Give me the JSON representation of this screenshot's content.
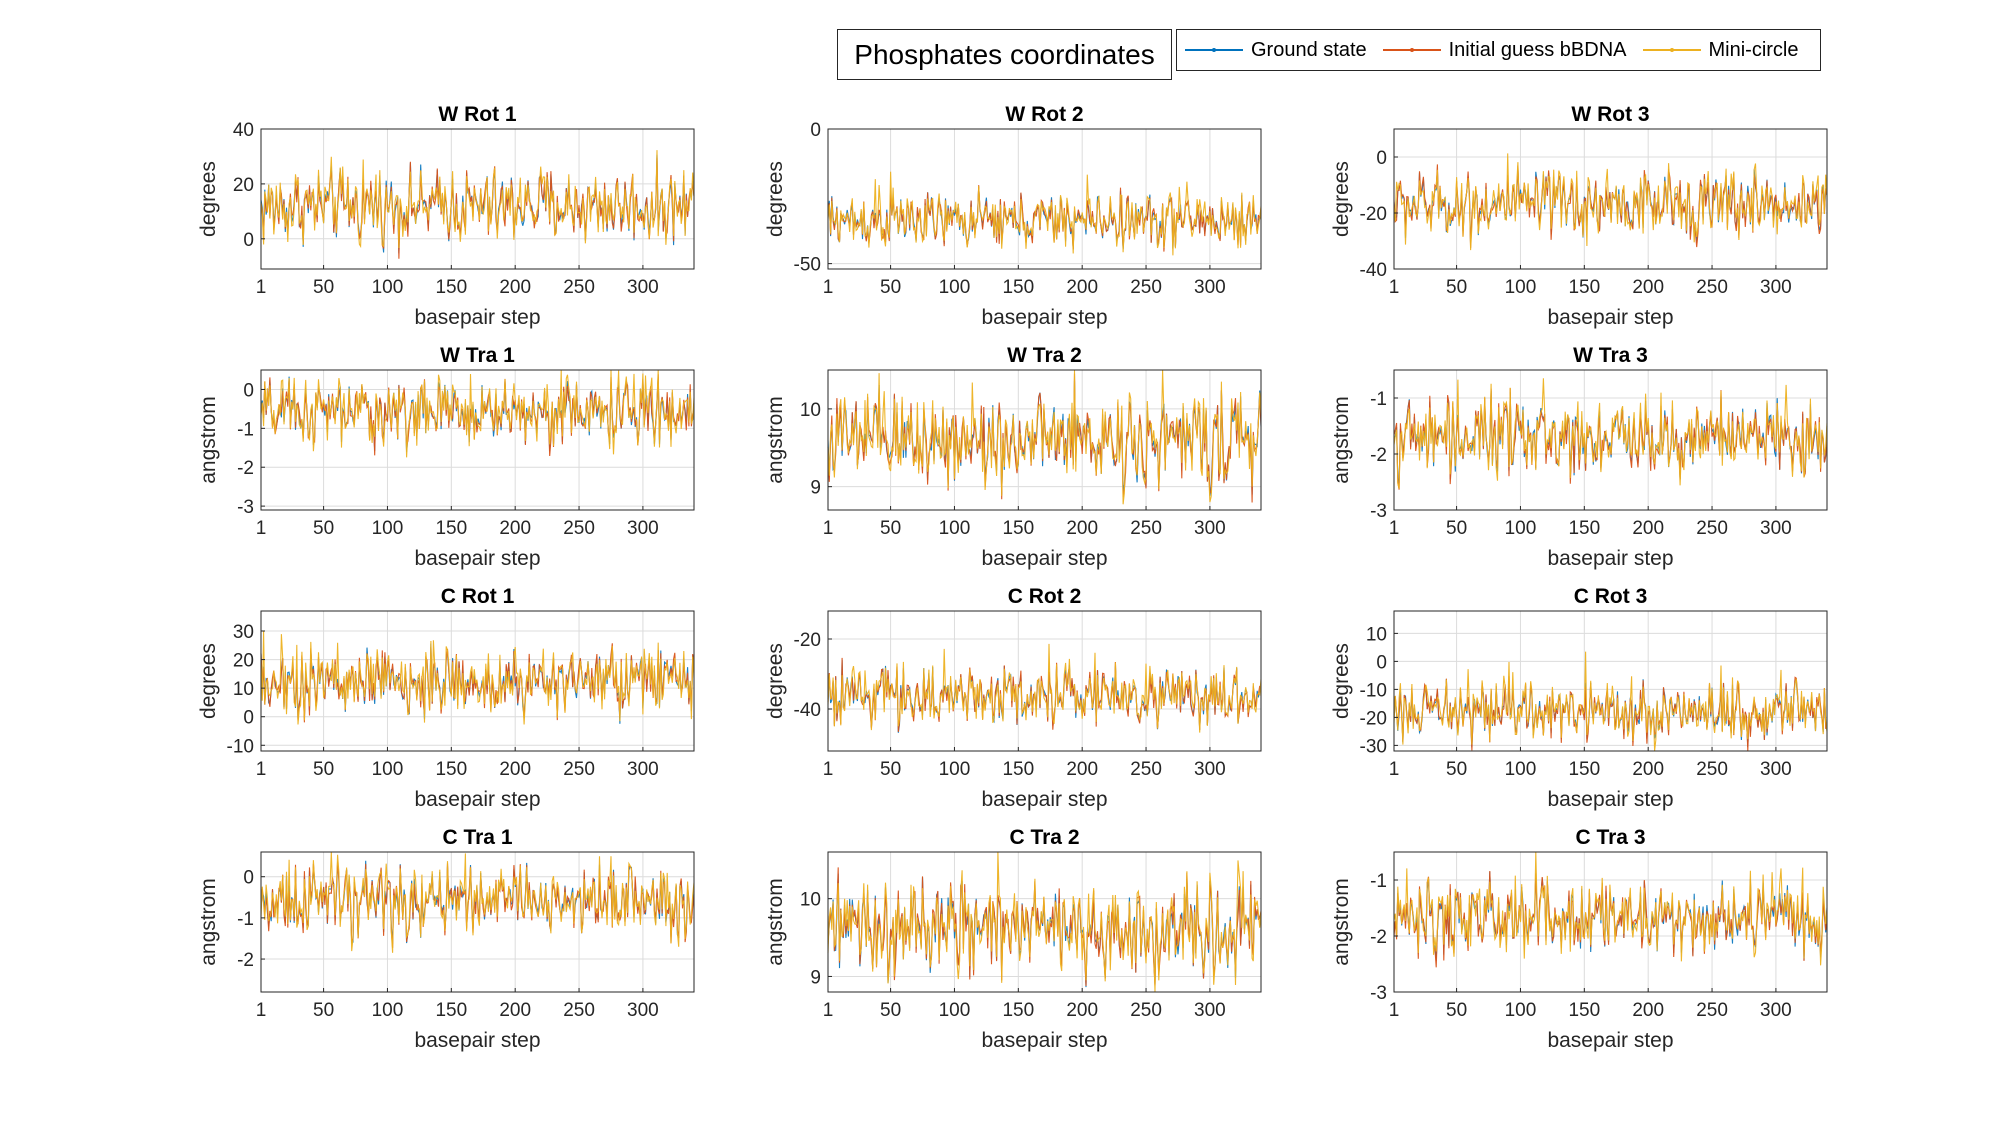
{
  "figure_title": "Phosphates coordinates",
  "legend": {
    "entries": [
      {
        "label": "Ground state",
        "color": "#0072BD"
      },
      {
        "label": "Initial guess bBDNA",
        "color": "#D95319"
      },
      {
        "label": "Mini-circle",
        "color": "#EDB120"
      }
    ]
  },
  "chart_data": [
    {
      "type": "line",
      "title": "W Rot 1",
      "xlabel": "basepair step",
      "ylabel": "degrees",
      "xlim": [
        1,
        340
      ],
      "ylim": [
        -11,
        40
      ],
      "xticks": [
        1,
        50,
        100,
        150,
        200,
        250,
        300
      ],
      "yticks": [
        0,
        20,
        40
      ],
      "mean": 12,
      "spread": 8,
      "grid": true
    },
    {
      "type": "line",
      "title": "W Rot 2",
      "xlabel": "basepair step",
      "ylabel": "degrees",
      "xlim": [
        1,
        340
      ],
      "ylim": [
        -52,
        0
      ],
      "xticks": [
        1,
        50,
        100,
        150,
        200,
        250,
        300
      ],
      "yticks": [
        -50,
        0
      ],
      "mean": -34,
      "spread": 6,
      "grid": true
    },
    {
      "type": "line",
      "title": "W Rot 3",
      "xlabel": "basepair step",
      "ylabel": "degrees",
      "xlim": [
        1,
        340
      ],
      "ylim": [
        -40,
        10
      ],
      "xticks": [
        1,
        50,
        100,
        150,
        200,
        250,
        300
      ],
      "yticks": [
        -40,
        -20,
        0
      ],
      "mean": -17,
      "spread": 7,
      "grid": true
    },
    {
      "type": "line",
      "title": "W Tra 1",
      "xlabel": "basepair step",
      "ylabel": "angstrom",
      "xlim": [
        1,
        340
      ],
      "ylim": [
        -3.1,
        0.5
      ],
      "xticks": [
        1,
        50,
        100,
        150,
        200,
        250,
        300
      ],
      "yticks": [
        -3,
        -2,
        -1,
        0
      ],
      "mean": -0.6,
      "spread": 0.5,
      "grid": true
    },
    {
      "type": "line",
      "title": "W Tra 2",
      "xlabel": "basepair step",
      "ylabel": "angstrom",
      "xlim": [
        1,
        340
      ],
      "ylim": [
        8.7,
        10.5
      ],
      "xticks": [
        1,
        50,
        100,
        150,
        200,
        250,
        300
      ],
      "yticks": [
        9,
        10
      ],
      "mean": 9.6,
      "spread": 0.35,
      "grid": true
    },
    {
      "type": "line",
      "title": "W Tra 3",
      "xlabel": "basepair step",
      "ylabel": "angstrom",
      "xlim": [
        1,
        340
      ],
      "ylim": [
        -3,
        -0.5
      ],
      "xticks": [
        1,
        50,
        100,
        150,
        200,
        250,
        300
      ],
      "yticks": [
        -3,
        -2,
        -1
      ],
      "mean": -1.7,
      "spread": 0.4,
      "grid": true
    },
    {
      "type": "line",
      "title": "C Rot 1",
      "xlabel": "basepair step",
      "ylabel": "degrees",
      "xlim": [
        1,
        340
      ],
      "ylim": [
        -12,
        37
      ],
      "xticks": [
        1,
        50,
        100,
        150,
        200,
        250,
        300
      ],
      "yticks": [
        -10,
        0,
        10,
        20,
        30
      ],
      "mean": 12,
      "spread": 7,
      "grid": true
    },
    {
      "type": "line",
      "title": "C Rot 2",
      "xlabel": "basepair step",
      "ylabel": "degrees",
      "xlim": [
        1,
        340
      ],
      "ylim": [
        -52,
        -12
      ],
      "xticks": [
        1,
        50,
        100,
        150,
        200,
        250,
        300
      ],
      "yticks": [
        -40,
        -20
      ],
      "mean": -36,
      "spread": 5,
      "grid": true
    },
    {
      "type": "line",
      "title": "C Rot 3",
      "xlabel": "basepair step",
      "ylabel": "degrees",
      "xlim": [
        1,
        340
      ],
      "ylim": [
        -32,
        18
      ],
      "xticks": [
        1,
        50,
        100,
        150,
        200,
        250,
        300
      ],
      "yticks": [
        -30,
        -20,
        -10,
        0,
        10
      ],
      "mean": -18,
      "spread": 6,
      "grid": true
    },
    {
      "type": "line",
      "title": "C Tra 1",
      "xlabel": "basepair step",
      "ylabel": "angstrom",
      "xlim": [
        1,
        340
      ],
      "ylim": [
        -2.8,
        0.6
      ],
      "xticks": [
        1,
        50,
        100,
        150,
        200,
        250,
        300
      ],
      "yticks": [
        -2,
        -1,
        0
      ],
      "mean": -0.6,
      "spread": 0.5,
      "grid": true
    },
    {
      "type": "line",
      "title": "C Tra 2",
      "xlabel": "basepair step",
      "ylabel": "angstrom",
      "xlim": [
        1,
        340
      ],
      "ylim": [
        8.8,
        10.6
      ],
      "xticks": [
        1,
        50,
        100,
        150,
        200,
        250,
        300
      ],
      "yticks": [
        9,
        10
      ],
      "mean": 9.6,
      "spread": 0.35,
      "grid": true
    },
    {
      "type": "line",
      "title": "C Tra 3",
      "xlabel": "basepair step",
      "ylabel": "angstrom",
      "xlim": [
        1,
        340
      ],
      "ylim": [
        -3,
        -0.5
      ],
      "xticks": [
        1,
        50,
        100,
        150,
        200,
        250,
        300
      ],
      "yticks": [
        -3,
        -2,
        -1
      ],
      "mean": -1.7,
      "spread": 0.4,
      "grid": true
    }
  ]
}
